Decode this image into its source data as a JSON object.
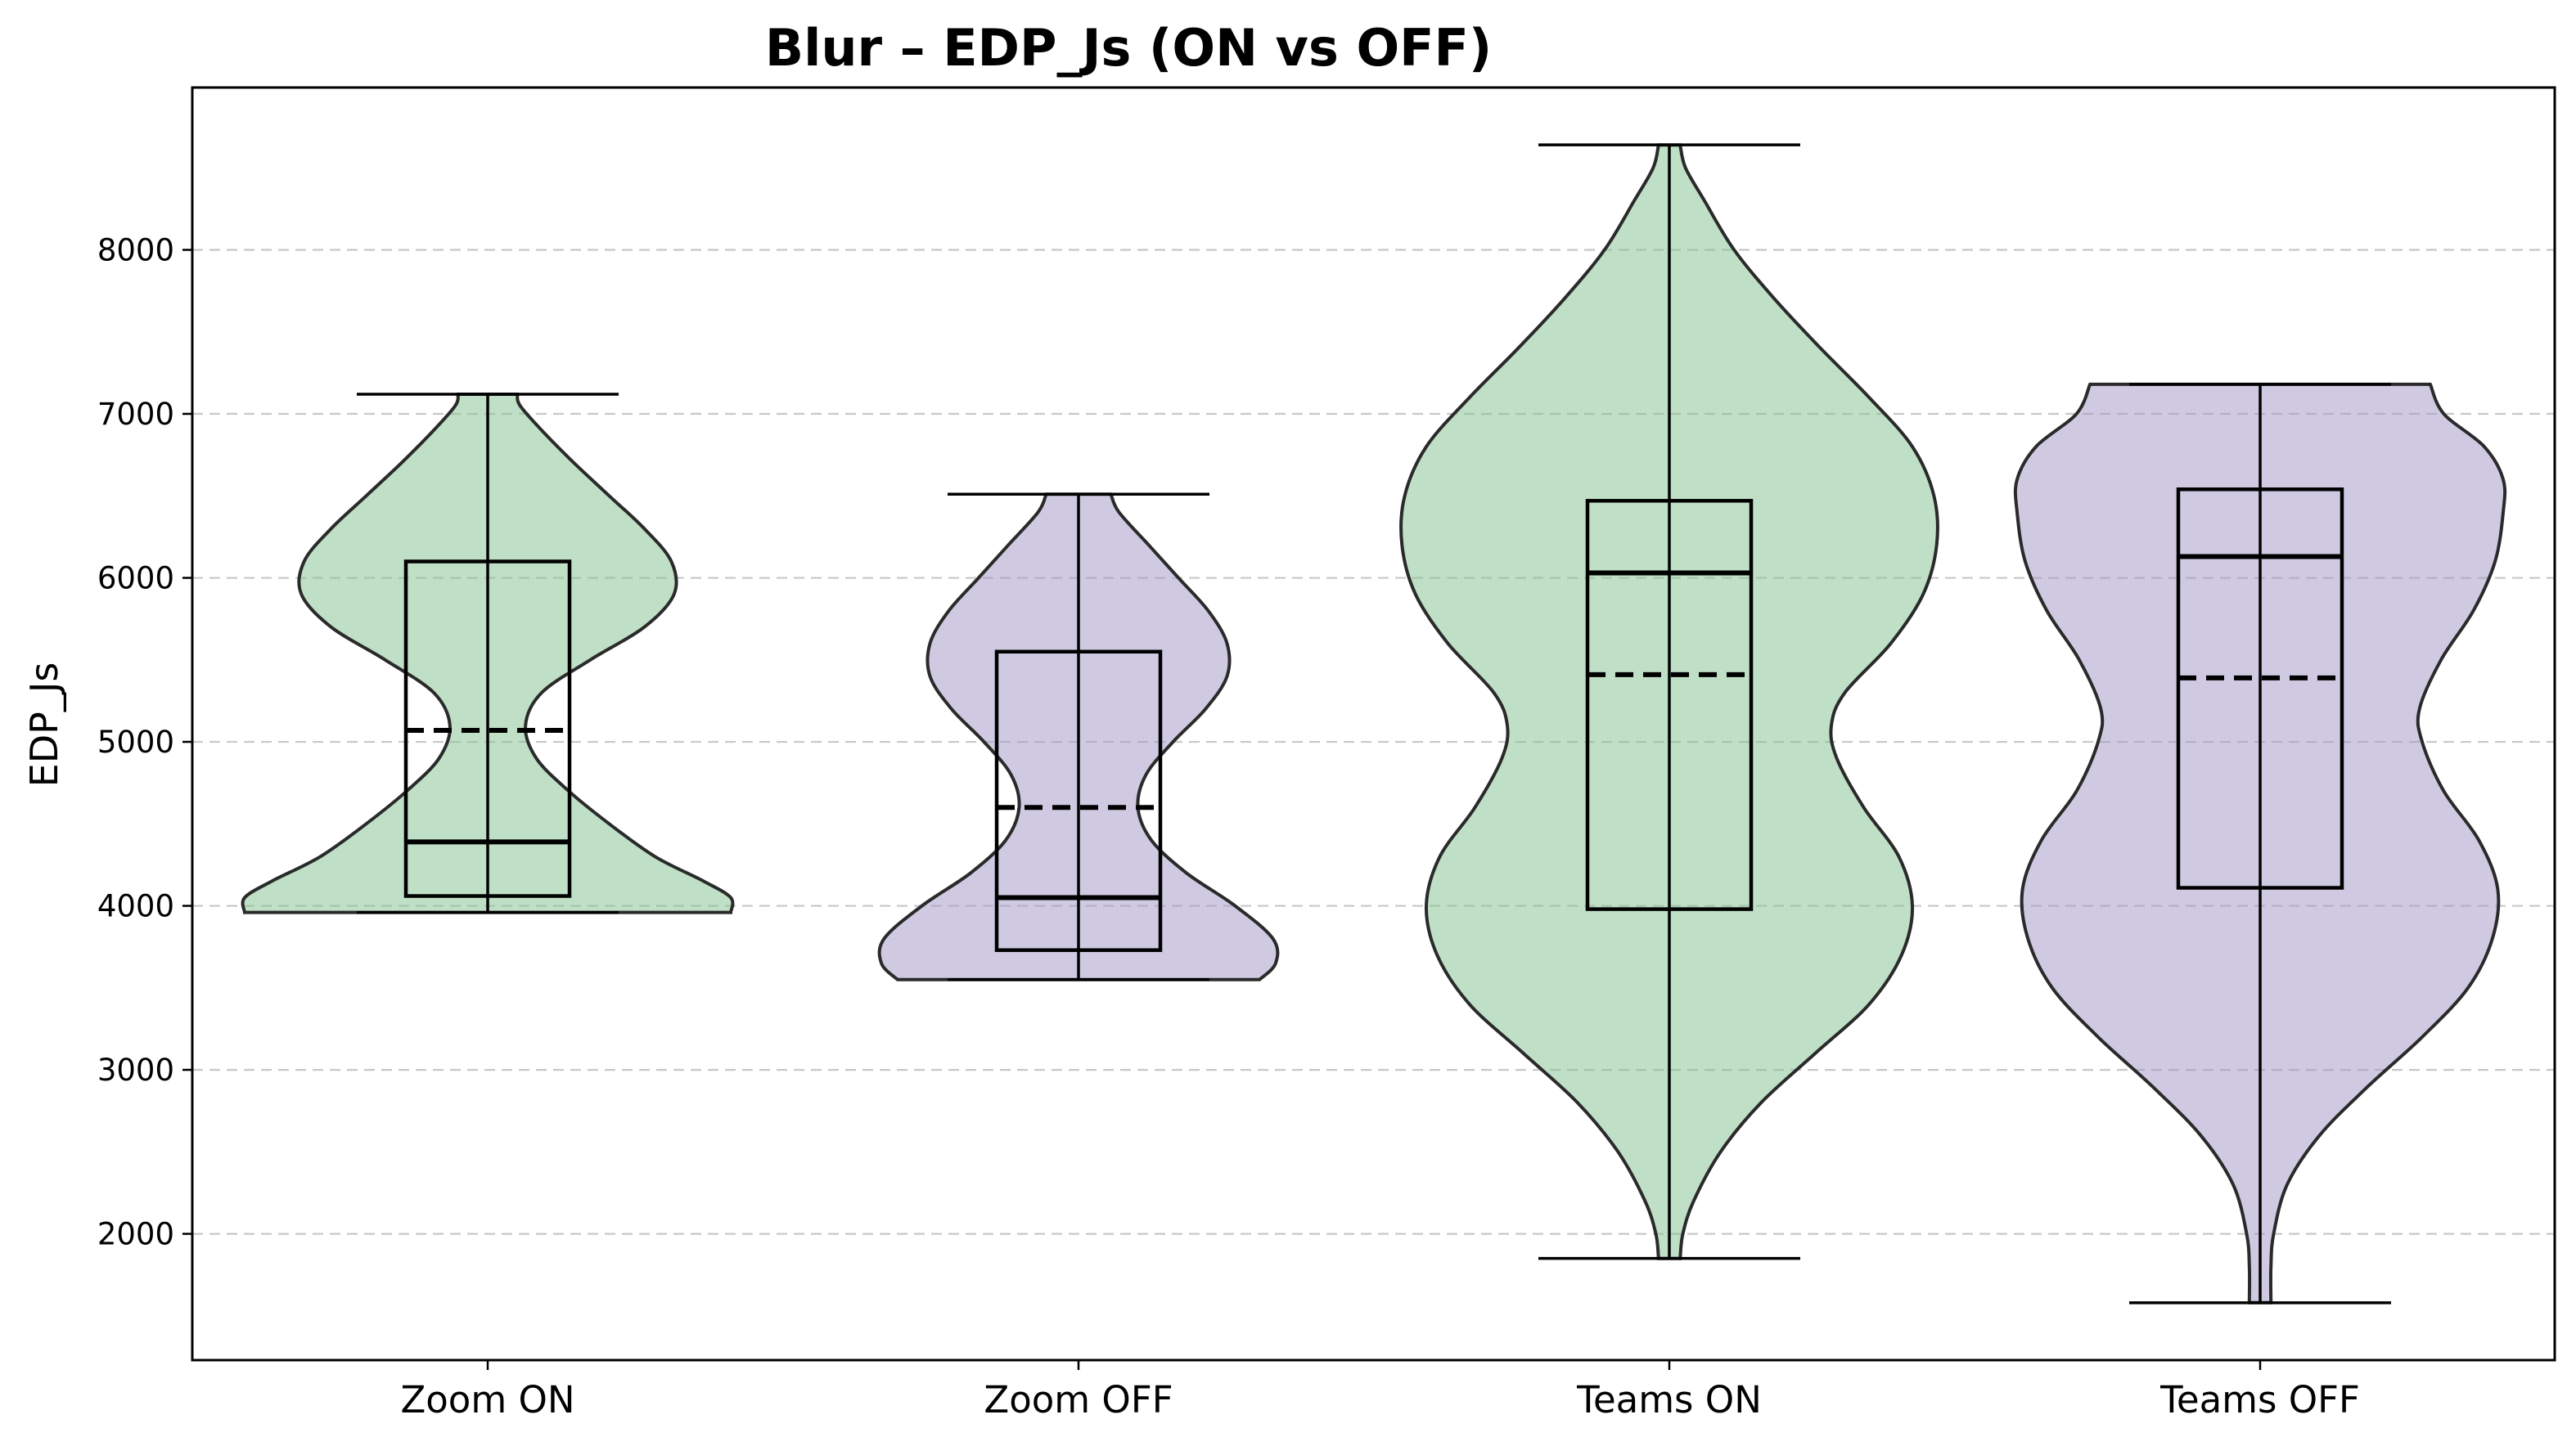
{
  "chart_data": {
    "type": "violin",
    "title": "Blur – EDP_Js (ON vs OFF)",
    "xlabel": "",
    "ylabel": "EDP_Js",
    "ylim": [
      1230,
      8990
    ],
    "yticks": [
      2000,
      3000,
      4000,
      5000,
      6000,
      7000,
      8000
    ],
    "grid": "y-dashed",
    "categories": [
      "Zoom ON",
      "Zoom OFF",
      "Teams ON",
      "Teams OFF"
    ],
    "colors": {
      "on": "#7fbf8e",
      "off": "#a095c6"
    },
    "series": [
      {
        "category": "Zoom ON",
        "color_key": "on",
        "min": 3960,
        "q1": 4060,
        "median": 4390,
        "mean": 5070,
        "q3": 6100,
        "max": 7120,
        "density": [
          [
            3960,
            0.9
          ],
          [
            4050,
            0.9
          ],
          [
            4150,
            0.8
          ],
          [
            4300,
            0.62
          ],
          [
            4500,
            0.45
          ],
          [
            4700,
            0.3
          ],
          [
            4900,
            0.18
          ],
          [
            5100,
            0.14
          ],
          [
            5300,
            0.2
          ],
          [
            5500,
            0.38
          ],
          [
            5700,
            0.58
          ],
          [
            5900,
            0.69
          ],
          [
            6100,
            0.68
          ],
          [
            6300,
            0.58
          ],
          [
            6500,
            0.45
          ],
          [
            6700,
            0.32
          ],
          [
            6900,
            0.2
          ],
          [
            7050,
            0.12
          ],
          [
            7120,
            0.11
          ]
        ]
      },
      {
        "category": "Zoom OFF",
        "color_key": "off",
        "min": 3550,
        "q1": 3730,
        "median": 4050,
        "mean": 4600,
        "q3": 5550,
        "max": 6510,
        "density": [
          [
            3550,
            0.67
          ],
          [
            3650,
            0.73
          ],
          [
            3800,
            0.72
          ],
          [
            4000,
            0.58
          ],
          [
            4200,
            0.4
          ],
          [
            4400,
            0.27
          ],
          [
            4600,
            0.22
          ],
          [
            4800,
            0.25
          ],
          [
            5000,
            0.35
          ],
          [
            5200,
            0.47
          ],
          [
            5400,
            0.55
          ],
          [
            5600,
            0.55
          ],
          [
            5800,
            0.48
          ],
          [
            6000,
            0.37
          ],
          [
            6200,
            0.26
          ],
          [
            6400,
            0.15
          ],
          [
            6510,
            0.12
          ]
        ]
      },
      {
        "category": "Teams ON",
        "color_key": "on",
        "min": 1850,
        "q1": 3980,
        "median": 6030,
        "mean": 5410,
        "q3": 6470,
        "max": 8640,
        "density": [
          [
            1850,
            0.04
          ],
          [
            2000,
            0.05
          ],
          [
            2200,
            0.09
          ],
          [
            2500,
            0.19
          ],
          [
            2800,
            0.34
          ],
          [
            3100,
            0.54
          ],
          [
            3400,
            0.74
          ],
          [
            3700,
            0.86
          ],
          [
            4000,
            0.9
          ],
          [
            4300,
            0.85
          ],
          [
            4600,
            0.72
          ],
          [
            4900,
            0.62
          ],
          [
            5100,
            0.6
          ],
          [
            5300,
            0.65
          ],
          [
            5600,
            0.82
          ],
          [
            5900,
            0.94
          ],
          [
            6200,
            0.99
          ],
          [
            6500,
            0.98
          ],
          [
            6800,
            0.9
          ],
          [
            7100,
            0.74
          ],
          [
            7400,
            0.56
          ],
          [
            7700,
            0.39
          ],
          [
            8000,
            0.24
          ],
          [
            8300,
            0.13
          ],
          [
            8500,
            0.06
          ],
          [
            8640,
            0.04
          ]
        ]
      },
      {
        "category": "Teams OFF",
        "color_key": "off",
        "min": 1580,
        "q1": 4110,
        "median": 6130,
        "mean": 5390,
        "q3": 6540,
        "max": 7180,
        "density": [
          [
            1580,
            0.04
          ],
          [
            1800,
            0.04
          ],
          [
            2000,
            0.05
          ],
          [
            2300,
            0.1
          ],
          [
            2600,
            0.22
          ],
          [
            2900,
            0.4
          ],
          [
            3200,
            0.6
          ],
          [
            3500,
            0.77
          ],
          [
            3800,
            0.86
          ],
          [
            4100,
            0.88
          ],
          [
            4400,
            0.81
          ],
          [
            4700,
            0.68
          ],
          [
            5000,
            0.6
          ],
          [
            5200,
            0.59
          ],
          [
            5500,
            0.67
          ],
          [
            5800,
            0.79
          ],
          [
            6100,
            0.87
          ],
          [
            6400,
            0.9
          ],
          [
            6600,
            0.9
          ],
          [
            6800,
            0.83
          ],
          [
            7000,
            0.68
          ],
          [
            7180,
            0.63
          ]
        ]
      }
    ]
  }
}
